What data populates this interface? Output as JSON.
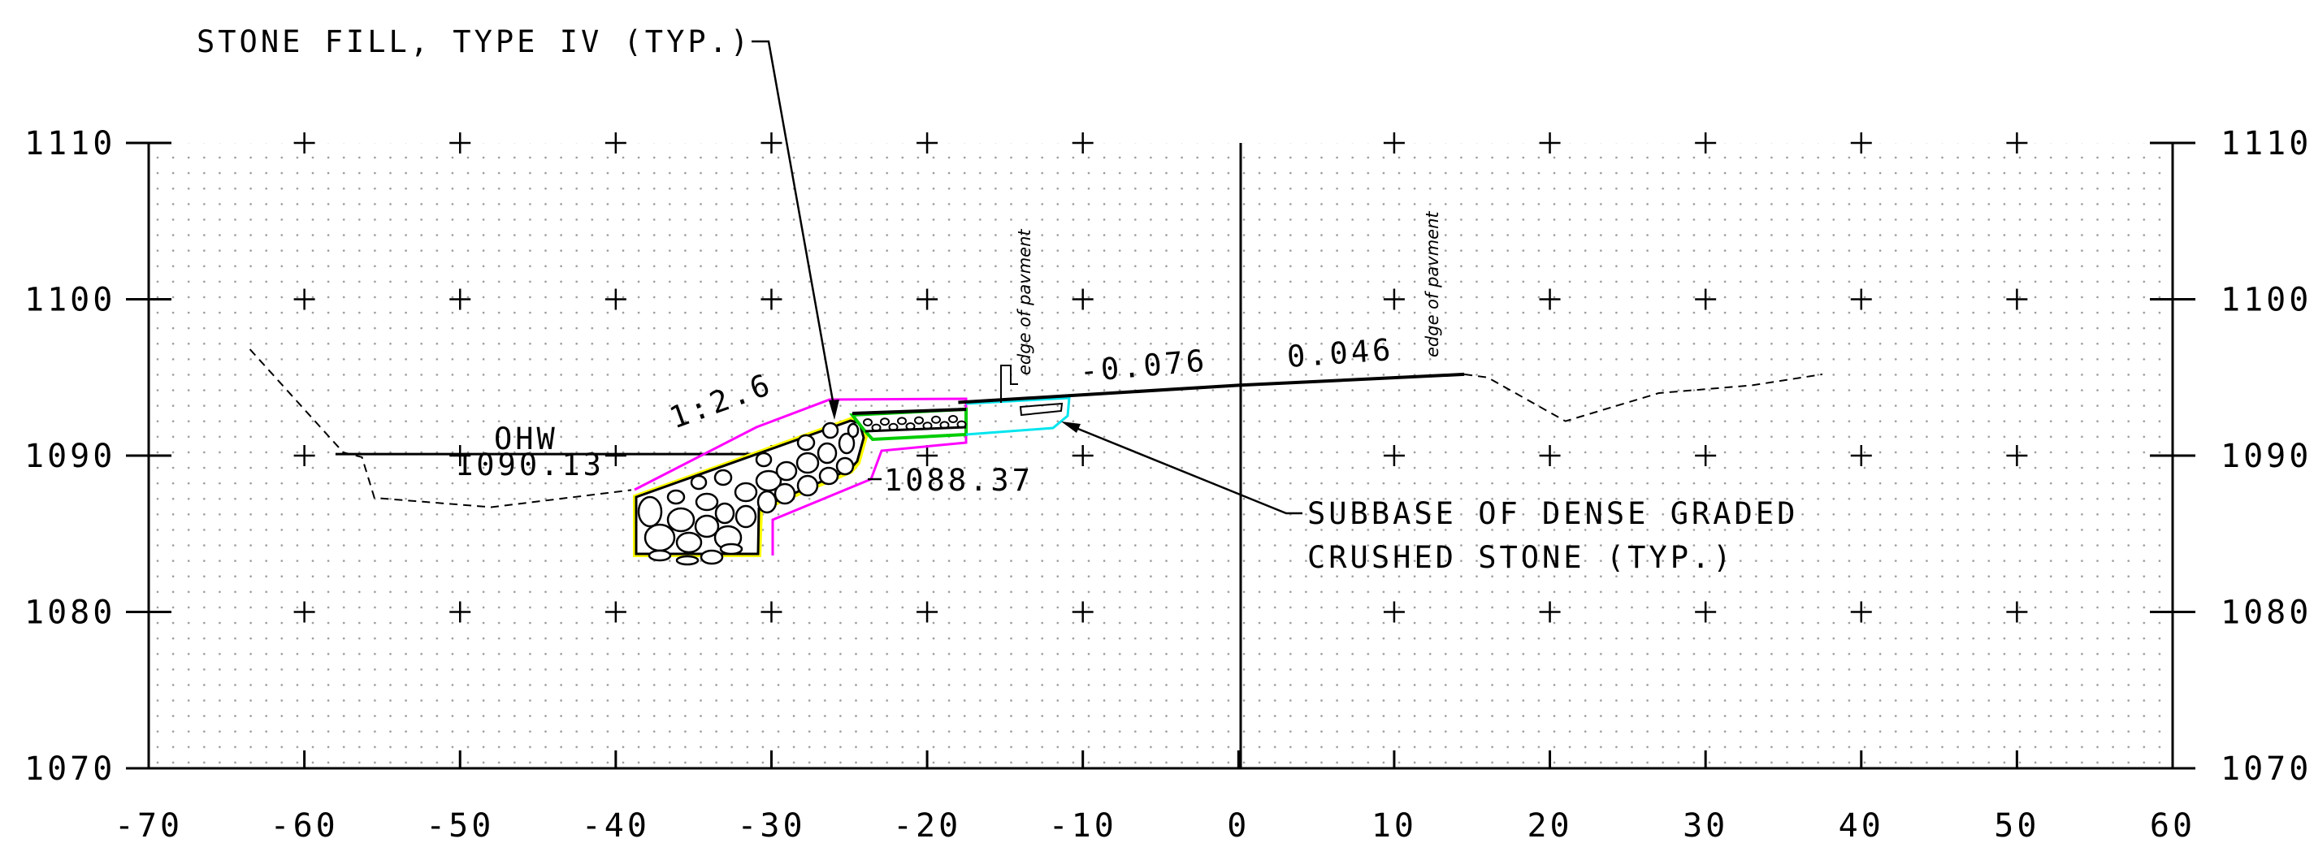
{
  "x_axis": {
    "min": -70,
    "max": 60,
    "tick_labels": [
      "-70",
      "-60",
      "-50",
      "-40",
      "-30",
      "-20",
      "-10",
      "0",
      "10",
      "20",
      "30",
      "40",
      "50",
      "60"
    ]
  },
  "y_axis": {
    "min": 1070,
    "max": 1110,
    "tick_labels": [
      "1070",
      "1080",
      "1090",
      "1100",
      "1110"
    ]
  },
  "annotations": {
    "stone_fill": "STONE FILL, TYPE IV (TYP.)",
    "ohw_label": "OHW",
    "ohw_elev": "1090.13",
    "slope_ratio": "1:2.6",
    "toe_elev": "1088.37",
    "grade_left": "-0.076",
    "grade_right": "0.046",
    "edge_pavement_1": "edge of pavment",
    "edge_pavement_2": "edge of pavment",
    "subbase_line1": "SUBBASE OF DENSE GRADED",
    "subbase_line2": "CRUSHED STONE (TYP.)"
  },
  "colors": {
    "line": "#000000",
    "riprap_outline": "#ffff00",
    "excavation": "#ff00ff",
    "subbase": "#00cc00",
    "pavement_base": "#00e5ee",
    "grid_dot": "#9a9a9a"
  },
  "features": {
    "ohw_line": [
      [
        -58,
        1090.1
      ],
      [
        -31,
        1090.1
      ]
    ],
    "existing_ground": [
      [
        -63.5,
        1096.8
      ],
      [
        -57.5,
        1090.2
      ],
      [
        -56.3,
        1089.9
      ],
      [
        -55.5,
        1087.3
      ],
      [
        -48,
        1086.7
      ],
      [
        -39,
        1087.8
      ]
    ],
    "existing_ground_right": [
      [
        14.5,
        1095.2
      ],
      [
        16,
        1095.0
      ],
      [
        21,
        1092.2
      ],
      [
        27,
        1094.0
      ],
      [
        33,
        1094.5
      ],
      [
        37.5,
        1095.2
      ]
    ],
    "finished_grade": [
      [
        -18,
        1093.4
      ],
      [
        0,
        1094.5
      ],
      [
        14.5,
        1095.2
      ]
    ]
  }
}
